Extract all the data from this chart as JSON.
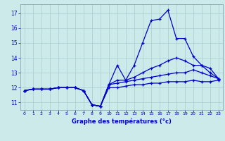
{
  "xlabel": "Graphe des températures (°c)",
  "xlim": [
    -0.5,
    23.5
  ],
  "ylim": [
    10.5,
    17.6
  ],
  "yticks": [
    11,
    12,
    13,
    14,
    15,
    16,
    17
  ],
  "xticks": [
    0,
    1,
    2,
    3,
    4,
    5,
    6,
    7,
    8,
    9,
    10,
    11,
    12,
    13,
    14,
    15,
    16,
    17,
    18,
    19,
    20,
    21,
    22,
    23
  ],
  "bg_color": "#cceaea",
  "line_color": "#0000cc",
  "grid_color": "#aacccc",
  "series": [
    [
      11.8,
      11.9,
      11.9,
      11.9,
      12.0,
      12.0,
      12.0,
      11.8,
      10.85,
      10.75,
      12.2,
      13.5,
      12.5,
      13.5,
      15.0,
      16.5,
      16.6,
      17.2,
      15.3,
      15.3,
      14.1,
      13.5,
      13.0,
      12.6
    ],
    [
      11.8,
      11.9,
      11.9,
      11.9,
      12.0,
      12.0,
      12.0,
      11.8,
      10.85,
      10.75,
      12.2,
      12.5,
      12.5,
      12.7,
      13.0,
      13.3,
      13.5,
      13.8,
      14.0,
      13.8,
      13.5,
      13.5,
      13.3,
      12.6
    ],
    [
      11.8,
      11.9,
      11.9,
      11.9,
      12.0,
      12.0,
      12.0,
      11.8,
      10.85,
      10.75,
      12.2,
      12.3,
      12.4,
      12.5,
      12.6,
      12.7,
      12.8,
      12.9,
      13.0,
      13.0,
      13.2,
      13.0,
      12.8,
      12.6
    ],
    [
      11.8,
      11.9,
      11.9,
      11.9,
      12.0,
      12.0,
      12.0,
      11.8,
      10.85,
      10.75,
      12.0,
      12.0,
      12.1,
      12.2,
      12.2,
      12.3,
      12.3,
      12.4,
      12.4,
      12.4,
      12.5,
      12.4,
      12.4,
      12.5
    ]
  ]
}
